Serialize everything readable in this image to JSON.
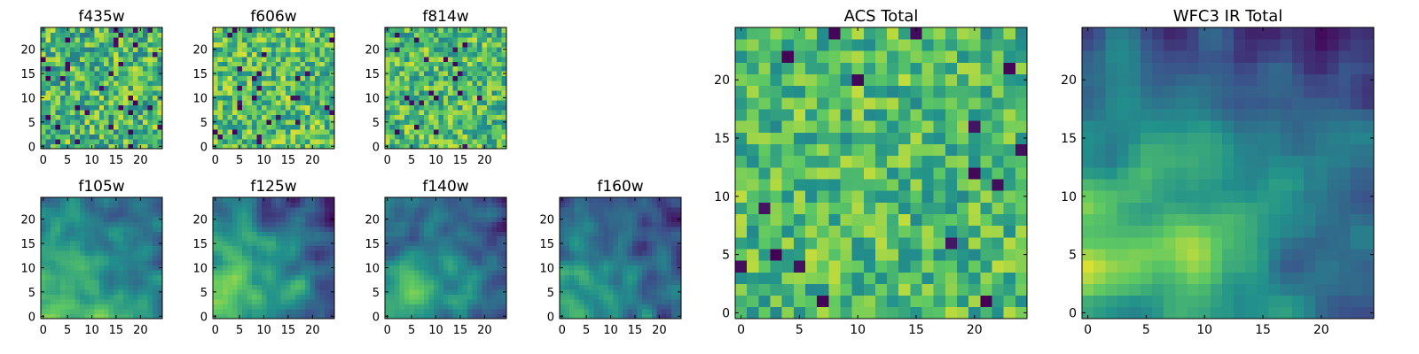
{
  "figure": {
    "colormap": "viridis",
    "colormap_stops": [
      "#440154",
      "#3b528b",
      "#21918c",
      "#5ec962",
      "#fde725"
    ]
  },
  "chart_data": [
    {
      "type": "heatmap",
      "title": "f435w",
      "grid": false,
      "xlim": [
        -0.5,
        24.5
      ],
      "ylim": [
        -0.5,
        24.5
      ],
      "xticks": [
        0,
        5,
        10,
        15,
        20
      ],
      "yticks": [
        0,
        5,
        10,
        15,
        20
      ],
      "rows": 25,
      "cols": 25,
      "texture": "random noise, mostly green-yellow with scattered dark purple pixels"
    },
    {
      "type": "heatmap",
      "title": "f606w",
      "grid": false,
      "xlim": [
        -0.5,
        24.5
      ],
      "ylim": [
        -0.5,
        24.5
      ],
      "xticks": [
        0,
        5,
        10,
        15,
        20
      ],
      "yticks": [
        0,
        5,
        10,
        15,
        20
      ],
      "rows": 25,
      "cols": 25,
      "texture": "random noise, mostly green-yellow with scattered dark purple pixels"
    },
    {
      "type": "heatmap",
      "title": "f814w",
      "grid": false,
      "xlim": [
        -0.5,
        24.5
      ],
      "ylim": [
        -0.5,
        24.5
      ],
      "xticks": [
        0,
        5,
        10,
        15,
        20
      ],
      "yticks": [
        0,
        5,
        10,
        15,
        20
      ],
      "rows": 25,
      "cols": 25,
      "texture": "random noise, mostly green-yellow, brighter toward lower-left"
    },
    {
      "type": "heatmap",
      "title": "f105w",
      "grid": false,
      "xlim": [
        -0.5,
        24.5
      ],
      "ylim": [
        -0.5,
        24.5
      ],
      "xticks": [
        0,
        5,
        10,
        15,
        20
      ],
      "yticks": [
        0,
        5,
        10,
        15,
        20
      ],
      "rows": 25,
      "cols": 25,
      "texture": "smooth, bright yellow at lower-left fading to teal and blue at right"
    },
    {
      "type": "heatmap",
      "title": "f125w",
      "grid": false,
      "xlim": [
        -0.5,
        24.5
      ],
      "ylim": [
        -0.5,
        24.5
      ],
      "xticks": [
        0,
        5,
        10,
        15,
        20
      ],
      "yticks": [
        0,
        5,
        10,
        15,
        20
      ],
      "rows": 25,
      "cols": 25,
      "texture": "smooth, bright yellow-green at left fading to blue at right"
    },
    {
      "type": "heatmap",
      "title": "f140w",
      "grid": false,
      "xlim": [
        -0.5,
        24.5
      ],
      "ylim": [
        -0.5,
        24.5
      ],
      "xticks": [
        0,
        5,
        10,
        15,
        20
      ],
      "yticks": [
        0,
        5,
        10,
        15,
        20
      ],
      "rows": 25,
      "cols": 25,
      "texture": "smooth, green with blue patches, bright lower-left"
    },
    {
      "type": "heatmap",
      "title": "f160w",
      "grid": false,
      "xlim": [
        -0.5,
        24.5
      ],
      "ylim": [
        -0.5,
        24.5
      ],
      "xticks": [
        0,
        5,
        10,
        15,
        20
      ],
      "yticks": [
        0,
        5,
        10,
        15,
        20
      ],
      "rows": 25,
      "cols": 25,
      "texture": "smooth, green with dark blue patches, bright lower-left"
    },
    {
      "type": "heatmap",
      "title": "ACS Total",
      "grid": false,
      "xlim": [
        -0.5,
        24.5
      ],
      "ylim": [
        -0.5,
        24.5
      ],
      "xticks": [
        0,
        5,
        10,
        15,
        20
      ],
      "yticks": [
        0,
        5,
        10,
        15,
        20
      ],
      "rows": 25,
      "cols": 25,
      "texture": "random noise, green-yellow with several dark purple pixels"
    },
    {
      "type": "heatmap",
      "title": "WFC3 IR Total",
      "grid": false,
      "xlim": [
        -0.5,
        24.5
      ],
      "ylim": [
        -0.5,
        24.5
      ],
      "xticks": [
        0,
        5,
        10,
        15,
        20
      ],
      "yticks": [
        0,
        5,
        10,
        15,
        20
      ],
      "rows": 25,
      "cols": 25,
      "texture": "smooth gradient, yellow at lower-left to teal and dark blue at upper-right"
    }
  ]
}
